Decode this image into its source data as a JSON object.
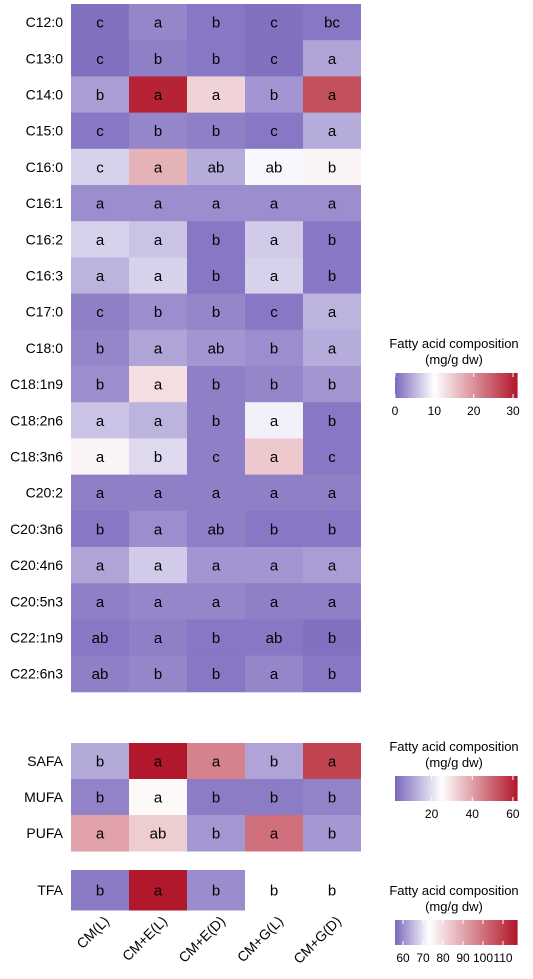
{
  "chart_data": [
    {
      "type": "heatmap",
      "columns": [
        "CM(L)",
        "CM+E(L)",
        "CM+E(D)",
        "CM+G(L)",
        "CM+G(D)"
      ],
      "rows": [
        "C12:0",
        "C13:0",
        "C14:0",
        "C15:0",
        "C16:0",
        "C16:1",
        "C16:2",
        "C16:3",
        "C17:0",
        "C18:0",
        "C18:1n9",
        "C18:2n6",
        "C18:3n6",
        "C20:2",
        "C20:3n6",
        "C20:4n6",
        "C20:5n3",
        "C22:1n9",
        "C22:6n3"
      ],
      "values": [
        [
          0.5,
          2.0,
          1.0,
          0.5,
          1.0
        ],
        [
          0.5,
          1.5,
          1.0,
          0.5,
          4.0
        ],
        [
          3.5,
          30.0,
          14.0,
          3.0,
          26.0
        ],
        [
          1.0,
          2.0,
          1.5,
          1.0,
          4.5
        ],
        [
          7.0,
          17.0,
          4.5,
          9.5,
          11.0
        ],
        [
          2.5,
          2.5,
          2.5,
          2.5,
          2.5
        ],
        [
          7.0,
          6.0,
          1.0,
          6.5,
          1.0
        ],
        [
          5.0,
          7.0,
          1.0,
          7.0,
          1.0
        ],
        [
          1.5,
          2.5,
          2.0,
          1.0,
          5.0
        ],
        [
          2.0,
          4.0,
          3.0,
          2.5,
          4.5
        ],
        [
          2.5,
          13.0,
          1.5,
          2.0,
          3.0
        ],
        [
          6.0,
          5.0,
          1.5,
          9.0,
          1.0
        ],
        [
          11.0,
          7.5,
          1.5,
          15.0,
          1.0
        ],
        [
          1.5,
          1.5,
          1.5,
          1.5,
          1.5
        ],
        [
          1.0,
          2.5,
          1.5,
          1.0,
          1.0
        ],
        [
          4.0,
          6.5,
          3.0,
          3.0,
          3.5
        ],
        [
          1.5,
          2.0,
          2.0,
          1.5,
          1.5
        ],
        [
          1.0,
          1.5,
          1.0,
          1.0,
          0.5
        ],
        [
          1.5,
          2.0,
          1.0,
          2.0,
          1.0
        ]
      ],
      "letters": [
        [
          "c",
          "a",
          "b",
          "c",
          "bc"
        ],
        [
          "c",
          "b",
          "b",
          "c",
          "a"
        ],
        [
          "b",
          "a",
          "a",
          "b",
          "a"
        ],
        [
          "c",
          "b",
          "b",
          "c",
          "a"
        ],
        [
          "c",
          "a",
          "ab",
          "ab",
          "b"
        ],
        [
          "a",
          "a",
          "a",
          "a",
          "a"
        ],
        [
          "a",
          "a",
          "b",
          "a",
          "b"
        ],
        [
          "a",
          "a",
          "b",
          "a",
          "b"
        ],
        [
          "c",
          "b",
          "b",
          "c",
          "a"
        ],
        [
          "b",
          "a",
          "ab",
          "b",
          "a"
        ],
        [
          "b",
          "a",
          "b",
          "b",
          "b"
        ],
        [
          "a",
          "a",
          "b",
          "a",
          "b"
        ],
        [
          "a",
          "b",
          "c",
          "a",
          "c"
        ],
        [
          "a",
          "a",
          "a",
          "a",
          "a"
        ],
        [
          "b",
          "a",
          "ab",
          "b",
          "b"
        ],
        [
          "a",
          "a",
          "a",
          "a",
          "a"
        ],
        [
          "a",
          "a",
          "a",
          "a",
          "a"
        ],
        [
          "ab",
          "a",
          "b",
          "ab",
          "b"
        ],
        [
          "ab",
          "b",
          "b",
          "a",
          "b"
        ]
      ],
      "legend": {
        "title_line1": "Fatty acid composition",
        "title_line2": "(mg/g dw)",
        "range": [
          0,
          31
        ],
        "mid": 10,
        "ticks": [
          0,
          10,
          20,
          30
        ]
      }
    },
    {
      "type": "heatmap",
      "columns": [
        "CM(L)",
        "CM+E(L)",
        "CM+E(D)",
        "CM+G(L)",
        "CM+G(D)"
      ],
      "rows": [
        "SAFA",
        "MUFA",
        "PUFA"
      ],
      "values": [
        [
          12,
          62,
          45,
          11,
          55
        ],
        [
          6,
          26,
          5,
          5,
          6
        ],
        [
          40,
          33,
          9,
          48,
          9
        ]
      ],
      "letters": [
        [
          "b",
          "a",
          "a",
          "b",
          "a"
        ],
        [
          "b",
          "a",
          "b",
          "b",
          "b"
        ],
        [
          "a",
          "ab",
          "b",
          "a",
          "b"
        ]
      ],
      "legend": {
        "title_line1": "Fatty acid composition",
        "title_line2": "(mg/g dw)",
        "range": [
          2,
          62
        ],
        "mid": 25,
        "ticks": [
          20,
          40,
          60
        ]
      }
    },
    {
      "type": "heatmap",
      "columns": [
        "CM(L)",
        "CM+E(L)",
        "CM+E(D)",
        "CM+G(L)",
        "CM+G(D)"
      ],
      "rows": [
        "TFA"
      ],
      "values": [
        [
          58,
          117,
          60,
          73,
          73
        ]
      ],
      "letters": [
        [
          "b",
          "a",
          "b",
          "b",
          "b"
        ]
      ],
      "legend": {
        "title_line1": "Fatty acid composition",
        "title_line2": "(mg/g dw)",
        "range": [
          56,
          117
        ],
        "mid": 73,
        "ticks": [
          60,
          70,
          80,
          90,
          100,
          110
        ],
        "tick_labels": [
          "60",
          "70",
          "80",
          "90",
          "100",
          "110"
        ]
      }
    }
  ],
  "colors": {
    "low": "#7b68bd",
    "mid": "#ffffff",
    "high": "#b2182b"
  }
}
